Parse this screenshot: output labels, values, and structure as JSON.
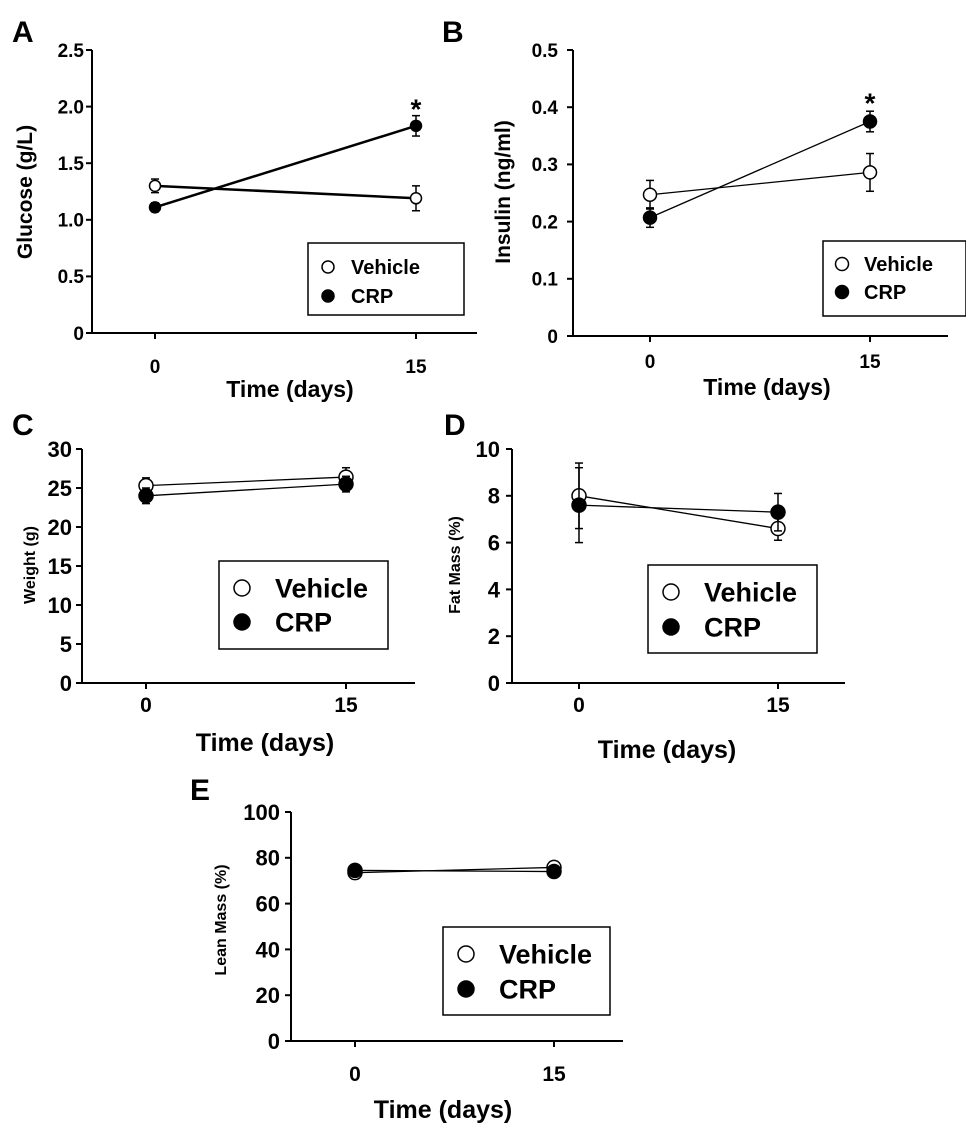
{
  "chart_data": [
    {
      "type": "line",
      "panel": "A",
      "ylabel": "Glucose (g/L)",
      "xlabel": "Time (days)",
      "ylim": [
        0,
        2.5
      ],
      "yticks": [
        "0",
        "0.5",
        "1.0",
        "1.5",
        "2.0",
        "2.5"
      ],
      "x": [
        0,
        15
      ],
      "xtick_labels": [
        "0",
        "15"
      ],
      "series": [
        {
          "name": "Vehicle",
          "marker": "open",
          "values": [
            1.3,
            1.19
          ],
          "err": [
            0.06,
            0.11
          ]
        },
        {
          "name": "CRP",
          "marker": "filled",
          "values": [
            1.11,
            1.83
          ],
          "err": [
            0.04,
            0.09
          ]
        }
      ],
      "annotations": [
        {
          "text": "*",
          "x": 15,
          "y": 2.02
        }
      ],
      "legend": [
        "Vehicle",
        "CRP"
      ]
    },
    {
      "type": "line",
      "panel": "B",
      "ylabel": "Insulin (ng/ml)",
      "xlabel": "Time (days)",
      "ylim": [
        0,
        0.5
      ],
      "yticks": [
        "0",
        "0.1",
        "0.2",
        "0.3",
        "0.4",
        "0.5"
      ],
      "x": [
        0,
        15
      ],
      "xtick_labels": [
        "0",
        "15"
      ],
      "series": [
        {
          "name": "Vehicle",
          "marker": "open",
          "values": [
            0.247,
            0.286
          ],
          "err": [
            0.025,
            0.033
          ]
        },
        {
          "name": "CRP",
          "marker": "filled",
          "values": [
            0.207,
            0.375
          ],
          "err": [
            0.017,
            0.018
          ]
        }
      ],
      "annotations": [
        {
          "text": "*",
          "x": 15,
          "y": 0.415
        }
      ],
      "legend": [
        "Vehicle",
        "CRP"
      ]
    },
    {
      "type": "line",
      "panel": "C",
      "ylabel": "Weight (g)",
      "xlabel": "Time (days)",
      "ylim": [
        0,
        30
      ],
      "yticks": [
        "0",
        "5",
        "10",
        "15",
        "20",
        "25",
        "30"
      ],
      "x": [
        0,
        15
      ],
      "xtick_labels": [
        "0",
        "15"
      ],
      "series": [
        {
          "name": "Vehicle",
          "marker": "open",
          "values": [
            25.3,
            26.4
          ],
          "err": [
            1.0,
            1.2
          ]
        },
        {
          "name": "CRP",
          "marker": "filled",
          "values": [
            24.0,
            25.5
          ],
          "err": [
            1.0,
            1.0
          ]
        }
      ],
      "legend": [
        "Vehicle",
        "CRP"
      ]
    },
    {
      "type": "line",
      "panel": "D",
      "ylabel": "Fat Mass (%)",
      "xlabel": "Time (days)",
      "ylim": [
        0,
        10
      ],
      "yticks": [
        "0",
        "2",
        "4",
        "6",
        "8",
        "10"
      ],
      "x": [
        0,
        15
      ],
      "xtick_labels": [
        "0",
        "15"
      ],
      "series": [
        {
          "name": "Vehicle",
          "marker": "open",
          "values": [
            8.0,
            6.6
          ],
          "err": [
            1.4,
            0.5
          ]
        },
        {
          "name": "CRP",
          "marker": "filled",
          "values": [
            7.6,
            7.3
          ],
          "err": [
            1.6,
            0.8
          ]
        }
      ],
      "legend": [
        "Vehicle",
        "CRP"
      ]
    },
    {
      "type": "line",
      "panel": "E",
      "ylabel": "Lean Mass (%)",
      "xlabel": "Time (days)",
      "ylim": [
        0,
        100
      ],
      "yticks": [
        "0",
        "20",
        "40",
        "60",
        "80",
        "100"
      ],
      "x": [
        0,
        15
      ],
      "xtick_labels": [
        "0",
        "15"
      ],
      "series": [
        {
          "name": "Vehicle",
          "marker": "open",
          "values": [
            73.5,
            75.8
          ],
          "err": [
            2.5,
            2.5
          ]
        },
        {
          "name": "CRP",
          "marker": "filled",
          "values": [
            74.5,
            74.0
          ],
          "err": [
            2.5,
            2.5
          ]
        }
      ],
      "legend": [
        "Vehicle",
        "CRP"
      ]
    }
  ]
}
